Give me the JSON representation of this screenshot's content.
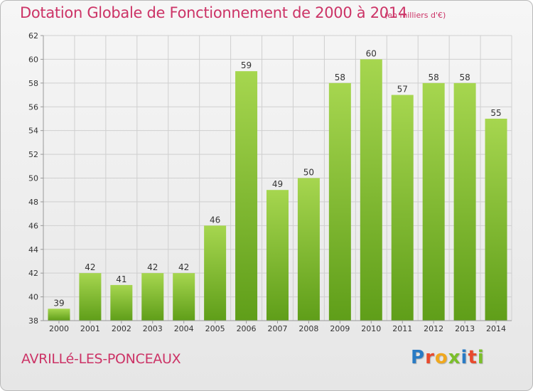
{
  "title": "Dotation Globale de Fonctionnement de 2000 à 2014",
  "unit_note": "(en milliers d'€)",
  "place_name": "AVRILLé-LES-PONCEAUX",
  "logo": {
    "letters": [
      "P",
      "r",
      "o",
      "x",
      "i",
      "t",
      "i"
    ],
    "colors": [
      "#2a7bc4",
      "#e84a2d",
      "#f0a81e",
      "#7bbf2a",
      "#2a7bc4",
      "#e84a2d",
      "#7bbf2a"
    ]
  },
  "colors": {
    "accent": "#cc3366",
    "bar_light": "#a6d64f",
    "bar_dark": "#5f9e19",
    "grid": "#cfcfcf",
    "axis": "#999999"
  },
  "chart_data": {
    "type": "bar",
    "categories": [
      "2000",
      "2001",
      "2002",
      "2003",
      "2004",
      "2005",
      "2006",
      "2007",
      "2008",
      "2009",
      "2010",
      "2011",
      "2012",
      "2013",
      "2014"
    ],
    "values": [
      39,
      42,
      41,
      42,
      42,
      46,
      59,
      49,
      50,
      58,
      60,
      57,
      58,
      58,
      55
    ],
    "ylim": [
      38,
      62
    ],
    "yticks": [
      38,
      40,
      42,
      44,
      46,
      48,
      50,
      52,
      54,
      56,
      58,
      60,
      62
    ],
    "grid": true,
    "xlabel": "",
    "ylabel": ""
  }
}
